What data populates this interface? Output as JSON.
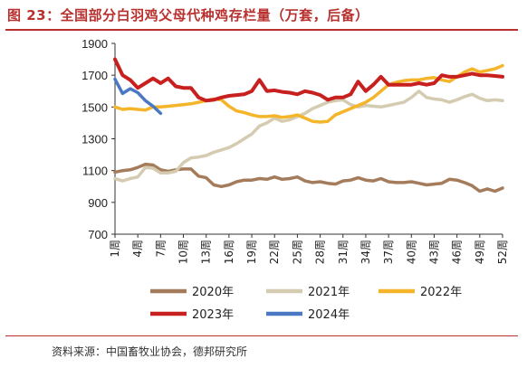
{
  "title": "图 23：全国部分白羽鸡父母代种鸡存栏量（万套，后备）",
  "source": "资料来源：中国畜牧业协会，德邦研究所",
  "chart_data": {
    "type": "line",
    "title": "图 23：全国部分白羽鸡父母代种鸡存栏量（万套，后备）",
    "xlabel": "",
    "ylabel": "",
    "ylim": [
      700,
      1900
    ],
    "yticks": [
      700,
      900,
      1100,
      1300,
      1500,
      1700,
      1900
    ],
    "x_tick_labels": [
      "1周",
      "4周",
      "7周",
      "10周",
      "13周",
      "16周",
      "19周",
      "22周",
      "25周",
      "28周",
      "31周",
      "34周",
      "37周",
      "40周",
      "43周",
      "46周",
      "49周",
      "52周"
    ],
    "x_tick_weeks": [
      1,
      4,
      7,
      10,
      13,
      16,
      19,
      22,
      25,
      28,
      31,
      34,
      37,
      40,
      43,
      46,
      49,
      52
    ],
    "legend_position": "bottom",
    "grid": false,
    "series": [
      {
        "name": "2020年",
        "color": "#a47c5b",
        "x": [
          1,
          2,
          3,
          4,
          5,
          6,
          7,
          8,
          9,
          10,
          11,
          12,
          13,
          14,
          15,
          16,
          17,
          18,
          19,
          20,
          21,
          22,
          23,
          24,
          25,
          26,
          27,
          28,
          29,
          30,
          31,
          32,
          33,
          34,
          35,
          36,
          37,
          38,
          39,
          40,
          41,
          42,
          43,
          44,
          45,
          46,
          47,
          48,
          49,
          50,
          51,
          52
        ],
        "values": [
          1090,
          1100,
          1105,
          1120,
          1140,
          1135,
          1105,
          1095,
          1105,
          1110,
          1110,
          1065,
          1055,
          1010,
          1000,
          1010,
          1030,
          1040,
          1040,
          1050,
          1045,
          1060,
          1045,
          1050,
          1060,
          1035,
          1025,
          1030,
          1020,
          1015,
          1035,
          1040,
          1055,
          1040,
          1035,
          1050,
          1030,
          1025,
          1025,
          1030,
          1020,
          1010,
          1015,
          1020,
          1045,
          1040,
          1025,
          1005,
          970,
          985,
          970,
          990
        ]
      },
      {
        "name": "2021年",
        "color": "#d4cbb0",
        "x": [
          1,
          2,
          3,
          4,
          5,
          6,
          7,
          8,
          9,
          10,
          11,
          12,
          13,
          14,
          15,
          16,
          17,
          18,
          19,
          20,
          21,
          22,
          23,
          24,
          25,
          26,
          27,
          28,
          29,
          30,
          31,
          32,
          33,
          34,
          35,
          36,
          37,
          38,
          39,
          40,
          41,
          42,
          43,
          44,
          45,
          46,
          47,
          48,
          49,
          50,
          51,
          52
        ],
        "values": [
          1050,
          1035,
          1050,
          1060,
          1120,
          1115,
          1085,
          1085,
          1095,
          1150,
          1180,
          1185,
          1195,
          1215,
          1230,
          1245,
          1270,
          1300,
          1330,
          1380,
          1400,
          1430,
          1410,
          1420,
          1440,
          1460,
          1490,
          1510,
          1530,
          1540,
          1545,
          1515,
          1500,
          1510,
          1505,
          1500,
          1510,
          1520,
          1530,
          1560,
          1600,
          1560,
          1550,
          1545,
          1530,
          1545,
          1565,
          1580,
          1555,
          1540,
          1545,
          1540
        ]
      },
      {
        "name": "2022年",
        "color": "#f5b52a",
        "x": [
          1,
          2,
          3,
          4,
          5,
          6,
          7,
          8,
          9,
          10,
          11,
          12,
          13,
          14,
          15,
          16,
          17,
          18,
          19,
          20,
          21,
          22,
          23,
          24,
          25,
          26,
          27,
          28,
          29,
          30,
          31,
          32,
          33,
          34,
          35,
          36,
          37,
          38,
          39,
          40,
          41,
          42,
          43,
          44,
          45,
          46,
          47,
          48,
          49,
          50,
          51,
          52
        ],
        "values": [
          1500,
          1485,
          1490,
          1485,
          1480,
          1500,
          1500,
          1505,
          1510,
          1515,
          1520,
          1530,
          1540,
          1550,
          1545,
          1505,
          1475,
          1465,
          1450,
          1440,
          1440,
          1445,
          1435,
          1440,
          1450,
          1430,
          1410,
          1405,
          1410,
          1450,
          1470,
          1490,
          1510,
          1530,
          1560,
          1600,
          1640,
          1655,
          1665,
          1670,
          1670,
          1680,
          1685,
          1670,
          1660,
          1690,
          1720,
          1740,
          1720,
          1730,
          1740,
          1760
        ]
      },
      {
        "name": "2023年",
        "color": "#c81f1f",
        "x": [
          1,
          2,
          3,
          4,
          5,
          6,
          7,
          8,
          9,
          10,
          11,
          12,
          13,
          14,
          15,
          16,
          17,
          18,
          19,
          20,
          21,
          22,
          23,
          24,
          25,
          26,
          27,
          28,
          29,
          30,
          31,
          32,
          33,
          34,
          35,
          36,
          37,
          38,
          39,
          40,
          41,
          42,
          43,
          44,
          45,
          46,
          47,
          48,
          49,
          50,
          51,
          52
        ],
        "values": [
          1800,
          1700,
          1670,
          1620,
          1650,
          1680,
          1650,
          1680,
          1630,
          1620,
          1620,
          1560,
          1540,
          1545,
          1560,
          1570,
          1575,
          1580,
          1600,
          1670,
          1600,
          1605,
          1595,
          1590,
          1580,
          1600,
          1590,
          1575,
          1545,
          1560,
          1560,
          1580,
          1660,
          1600,
          1640,
          1690,
          1640,
          1640,
          1640,
          1640,
          1650,
          1640,
          1650,
          1700,
          1690,
          1690,
          1700,
          1710,
          1700,
          1700,
          1695,
          1690
        ]
      },
      {
        "name": "2024年",
        "color": "#4a78c2",
        "x": [
          1,
          2,
          3,
          4,
          5,
          6,
          7
        ],
        "values": [
          1675,
          1585,
          1615,
          1590,
          1540,
          1505,
          1460
        ]
      }
    ]
  }
}
